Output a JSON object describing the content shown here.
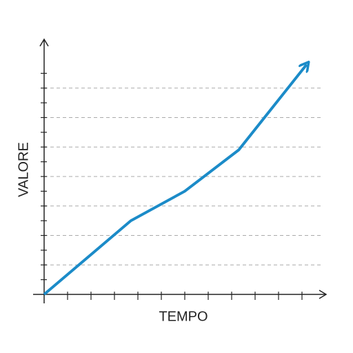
{
  "chart_data": {
    "type": "line",
    "x_label": "TEMPO",
    "y_label": "VALORE",
    "x": [
      0,
      3.7,
      6,
      8.3,
      11.2
    ],
    "values": [
      0,
      2.5,
      3.5,
      4.9,
      7.8
    ],
    "color": "#1b8bc8",
    "xlim": [
      0,
      12
    ],
    "ylim": [
      0,
      8
    ],
    "xticks": [
      1,
      2,
      3,
      4,
      5,
      6,
      7,
      8,
      9,
      10,
      11
    ],
    "yticks": [
      0.5,
      1,
      1.5,
      2,
      2.5,
      3,
      3.5,
      4,
      4.5,
      5,
      5.5,
      6,
      6.5,
      7,
      7.5
    ],
    "grid": true
  }
}
